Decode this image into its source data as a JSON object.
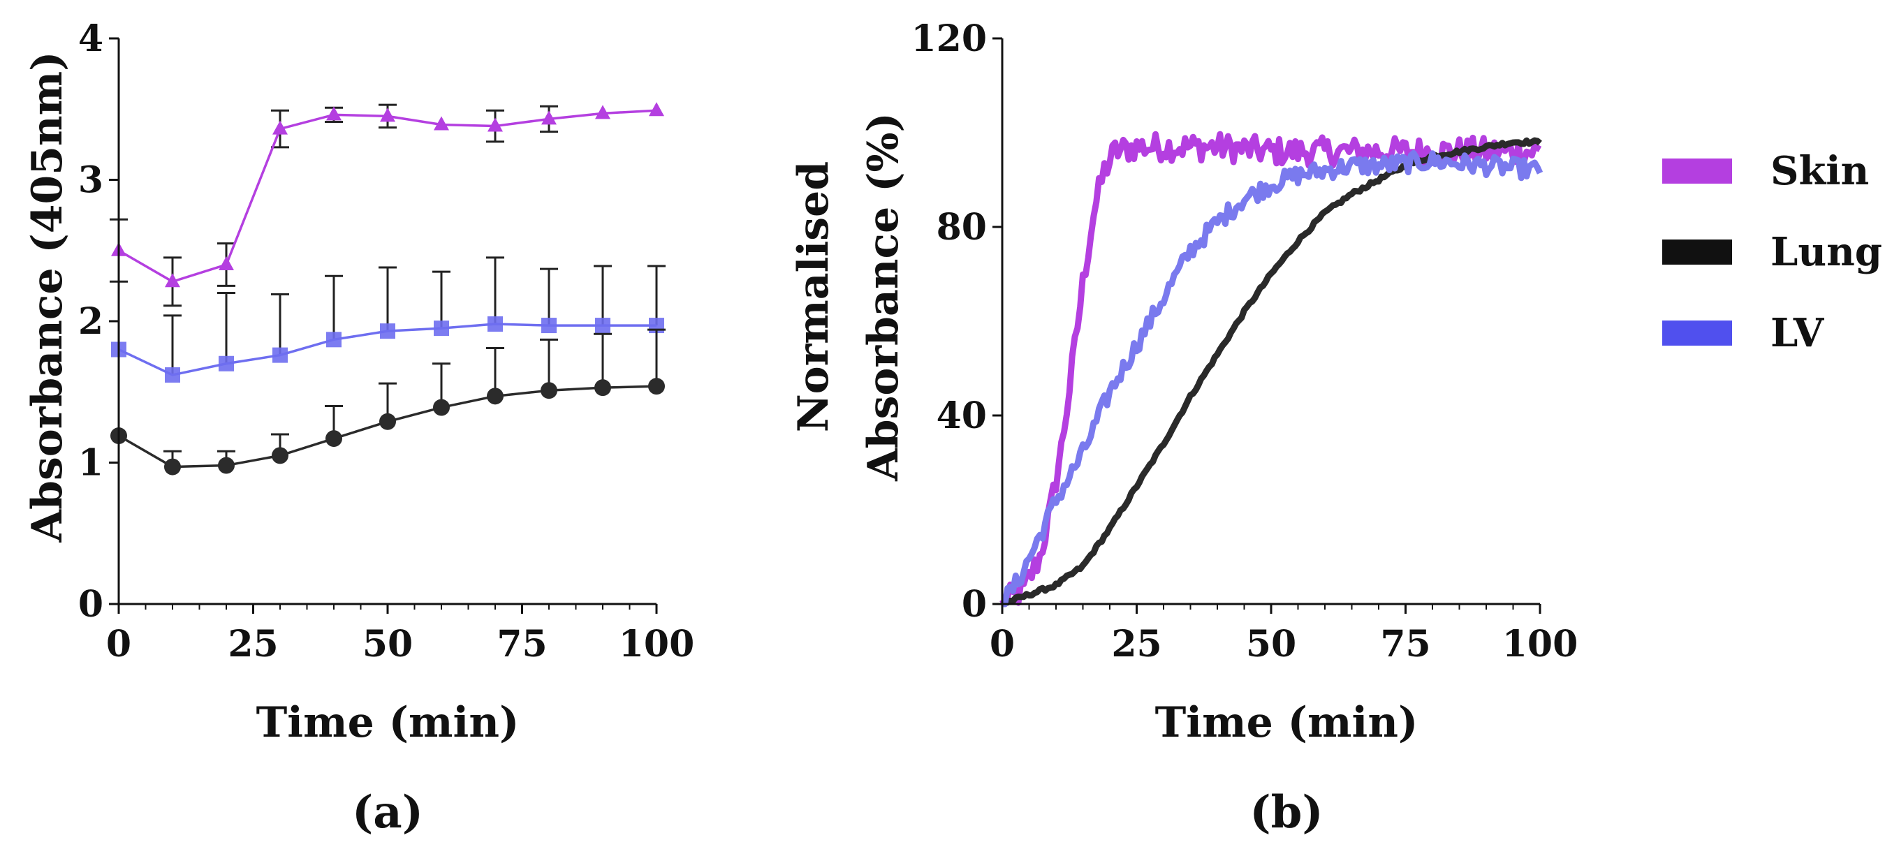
{
  "chart_data": [
    {
      "type": "line",
      "panel_label": "(a)",
      "xlabel": "Time (min)",
      "ylabel": "Absorbance (405nm)",
      "xlim": [
        0,
        100
      ],
      "ylim": [
        0,
        4
      ],
      "xticks": [
        "0",
        "25",
        "50",
        "75",
        "100"
      ],
      "yticks": [
        "0",
        "1",
        "2",
        "3",
        "4"
      ],
      "x": [
        0,
        10,
        20,
        30,
        40,
        50,
        60,
        70,
        80,
        90,
        100
      ],
      "series": [
        {
          "name": "Skin",
          "color": "#b43fe0",
          "marker": "triangle",
          "values": [
            2.5,
            2.28,
            2.4,
            3.36,
            3.46,
            3.45,
            3.39,
            3.38,
            3.43,
            3.47,
            3.49
          ],
          "errors": [
            0.22,
            0.17,
            0.15,
            0.13,
            0.05,
            0.08,
            0.0,
            0.11,
            0.09,
            0.0,
            0.0
          ]
        },
        {
          "name": "LV",
          "color": "#6e6ef0",
          "marker": "square",
          "values": [
            1.8,
            1.62,
            1.7,
            1.76,
            1.87,
            1.93,
            1.95,
            1.98,
            1.97,
            1.97,
            1.97
          ],
          "errors": [
            0.0,
            0.42,
            0.5,
            0.43,
            0.45,
            0.45,
            0.4,
            0.47,
            0.4,
            0.42,
            0.42
          ]
        },
        {
          "name": "Lung",
          "color": "#2b2b2b",
          "marker": "circle",
          "values": [
            1.19,
            0.97,
            0.98,
            1.05,
            1.17,
            1.29,
            1.39,
            1.47,
            1.51,
            1.53,
            1.54
          ],
          "errors": [
            0.0,
            0.11,
            0.1,
            0.15,
            0.23,
            0.27,
            0.31,
            0.34,
            0.36,
            0.38,
            0.4
          ]
        }
      ]
    },
    {
      "type": "line",
      "panel_label": "(b)",
      "xlabel": "Time (min)",
      "ylabel": [
        "Normalised",
        "Absorbance (%)"
      ],
      "xlim": [
        0,
        100
      ],
      "ylim": [
        0,
        120
      ],
      "xticks": [
        "0",
        "25",
        "50",
        "75",
        "100"
      ],
      "yticks": [
        "0",
        "40",
        "80",
        "120"
      ],
      "series": [
        {
          "name": "Skin",
          "color": "#b43fe0",
          "x": [
            0,
            4,
            7,
            9,
            11,
            13,
            15,
            17,
            19,
            21,
            25,
            30,
            40,
            50,
            60,
            70,
            80,
            90,
            100
          ],
          "values": [
            0,
            3,
            10,
            20,
            33,
            50,
            68,
            83,
            92,
            96,
            97,
            97,
            97,
            96,
            96,
            96,
            96,
            96,
            96
          ],
          "noise": 3
        },
        {
          "name": "Lung",
          "color": "#2a2a2a",
          "x": [
            0,
            5,
            10,
            15,
            20,
            25,
            30,
            35,
            40,
            45,
            50,
            55,
            60,
            65,
            70,
            75,
            80,
            85,
            90,
            95,
            100
          ],
          "values": [
            0,
            2,
            4,
            8,
            16,
            25,
            34,
            44,
            53,
            62,
            70,
            77,
            83,
            87,
            90,
            93,
            95,
            96,
            97,
            98,
            98
          ],
          "noise": 0.4
        },
        {
          "name": "LV",
          "color": "#7a7aee",
          "x": [
            0,
            3,
            6,
            10,
            15,
            20,
            25,
            30,
            35,
            40,
            45,
            50,
            55,
            60,
            65,
            70,
            80,
            90,
            100
          ],
          "values": [
            0,
            5,
            12,
            22,
            32,
            45,
            55,
            65,
            75,
            81,
            86,
            89,
            91,
            92,
            93,
            93,
            94,
            93,
            92
          ],
          "noise": 2
        }
      ],
      "legend": {
        "placement": "right",
        "entries": [
          {
            "label": "Skin",
            "color": "#b43fe0"
          },
          {
            "label": "Lung",
            "color": "#111111"
          },
          {
            "label": "LV",
            "color": "#5050ee"
          }
        ]
      }
    }
  ]
}
